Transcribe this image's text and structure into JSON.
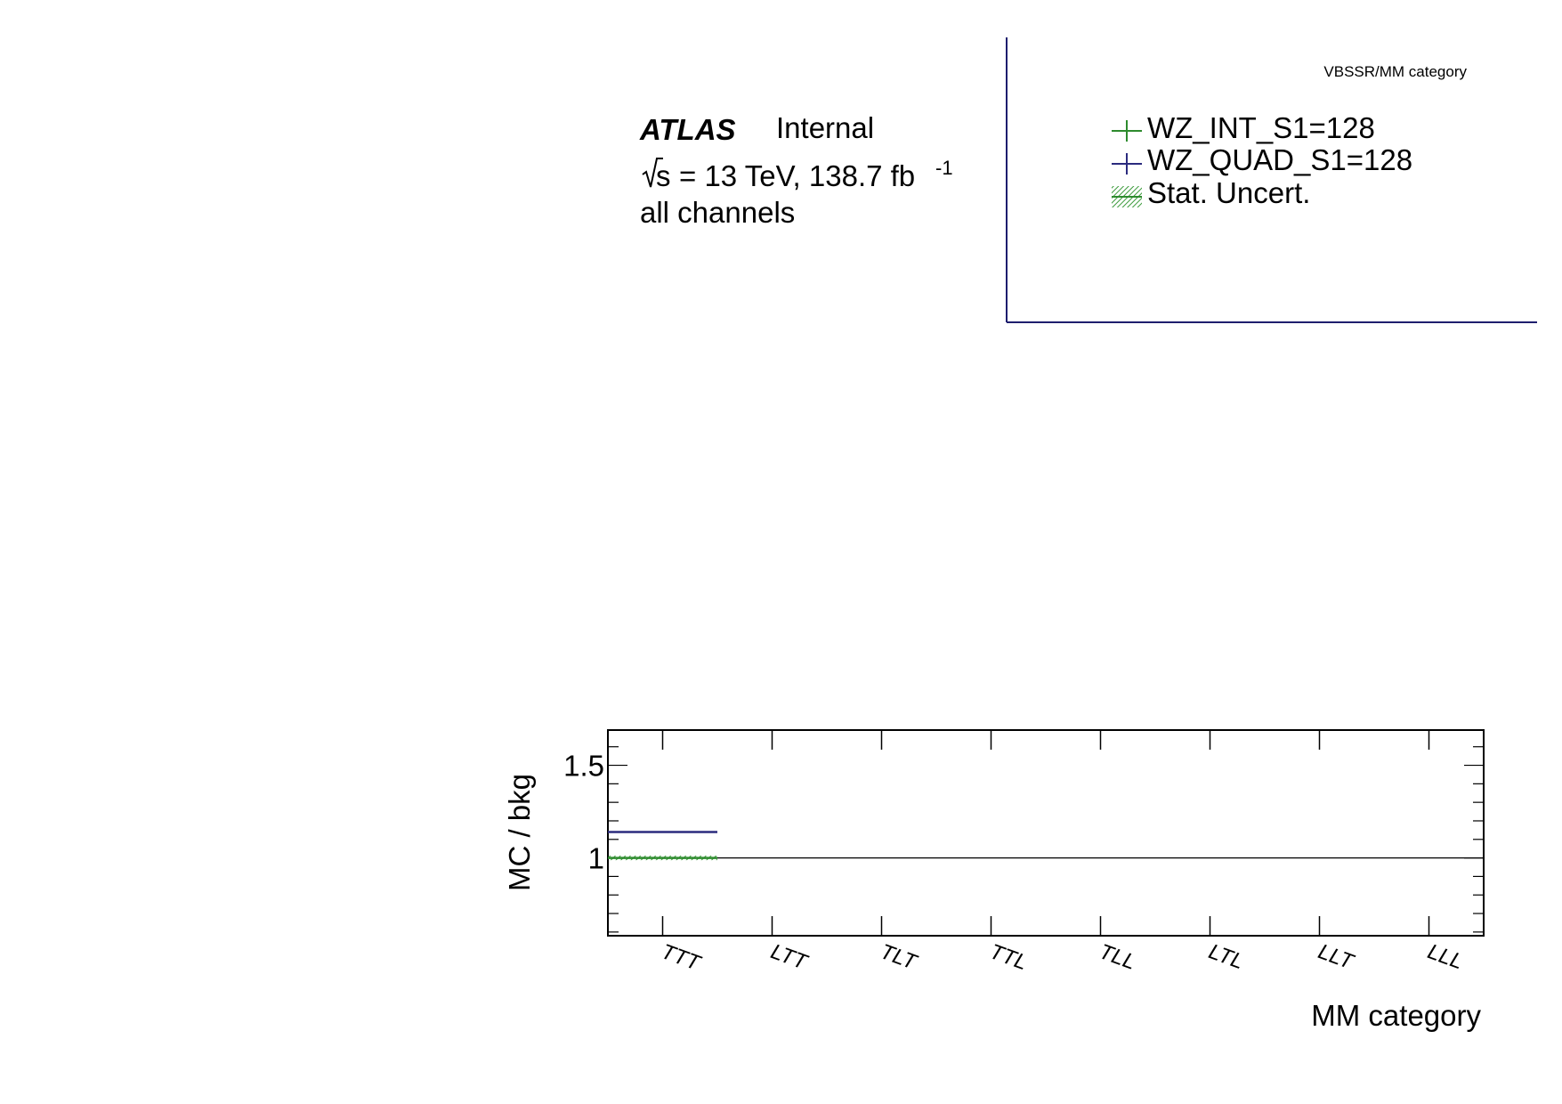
{
  "header": {
    "category_title": "VBSSR/MM category",
    "atlas_label": "ATLAS",
    "status_label": "Internal",
    "energy_prefix": "= 13 TeV, 138.7 fb",
    "sqrt_s": "s",
    "lumi_exponent": "-1",
    "channel_label": "all channels"
  },
  "legend": {
    "entries": [
      {
        "label": "WZ_INT_S1=128",
        "color": "#2e8b2e",
        "style": "cross"
      },
      {
        "label": "WZ_QUAD_S1=128",
        "color": "#2b2b7e",
        "style": "cross"
      },
      {
        "label": "Stat. Uncert.",
        "color": "#3a9a3a",
        "style": "hatch"
      }
    ]
  },
  "chart_data": {
    "type": "line",
    "xlabel": "MM category",
    "ylabel": "MC / bkg",
    "categories": [
      "TTT",
      "LTT",
      "TLT",
      "TTL",
      "TLL",
      "LTL",
      "LLT",
      "LLL"
    ],
    "ylim": [
      0.58,
      1.69
    ],
    "y_ticks": [
      {
        "value": 1.5,
        "label": "1.5"
      },
      {
        "value": 1.0,
        "label": "1"
      }
    ],
    "reference_line": 1.0,
    "series": [
      {
        "name": "WZ_INT_S1=128",
        "color": "#2e8b2e",
        "values": [
          1.0,
          null,
          null,
          null,
          null,
          null,
          null,
          null
        ]
      },
      {
        "name": "WZ_QUAD_S1=128",
        "color": "#2b2b7e",
        "values": [
          1.14,
          null,
          null,
          null,
          null,
          null,
          null,
          null
        ]
      }
    ],
    "stat_uncertainty": [
      0.005,
      null,
      null,
      null,
      null,
      null,
      null,
      null
    ],
    "grid": false
  }
}
